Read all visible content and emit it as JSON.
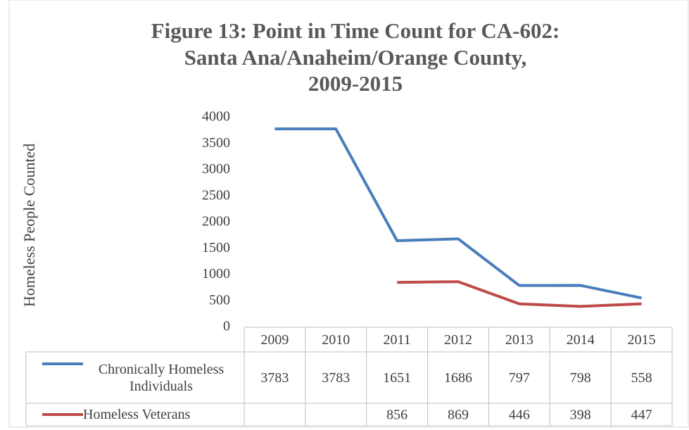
{
  "chart_data": {
    "type": "line",
    "title": [
      "Figure 13: Point in Time Count for CA-602:",
      "Santa Ana/Anaheim/Orange County,",
      "2009-2015"
    ],
    "y_label": "Homeless People Counted",
    "categories": [
      "2009",
      "2010",
      "2011",
      "2012",
      "2013",
      "2014",
      "2015"
    ],
    "series": [
      {
        "name": "Chronically Homeless Individuals",
        "color": "#4a7ebb",
        "values": [
          3783,
          3783,
          1651,
          1686,
          797,
          798,
          558
        ]
      },
      {
        "name": "Homeless Veterans",
        "color": "#be4b48",
        "values": [
          null,
          null,
          856,
          869,
          446,
          398,
          447
        ]
      }
    ],
    "ylim": [
      0,
      4000
    ],
    "yticks": [
      0,
      500,
      1000,
      1500,
      2000,
      2500,
      3000,
      3500,
      4000
    ],
    "grid": false,
    "data_table": true
  }
}
